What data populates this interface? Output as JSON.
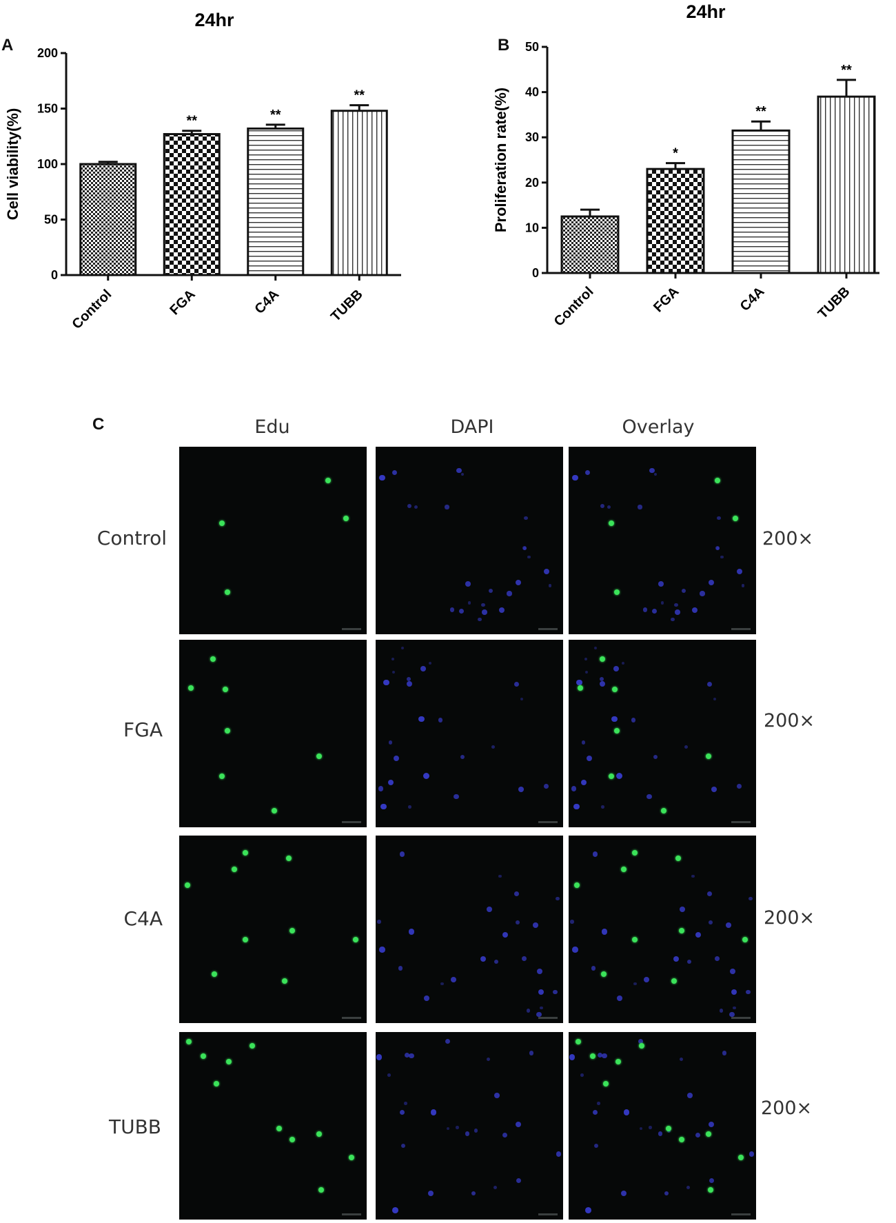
{
  "chart_data": [
    {
      "panel": "A",
      "type": "bar",
      "title": "24hr",
      "ylabel": "Cell viability(%)",
      "xlabel": "",
      "categories": [
        "Control",
        "FGA",
        "C4A",
        "TUBB"
      ],
      "values": [
        100,
        127,
        132,
        148
      ],
      "errors": [
        2,
        3,
        3.5,
        5
      ],
      "significance": [
        "",
        "**",
        "**",
        "**"
      ],
      "patterns": [
        "fine-check",
        "checker",
        "horizontal",
        "vertical"
      ],
      "ylim": [
        0,
        200
      ],
      "yticks": [
        0,
        50,
        100,
        150,
        200
      ],
      "grid": false
    },
    {
      "panel": "B",
      "type": "bar",
      "title": "24hr",
      "ylabel": "Proliferation rate(%)",
      "xlabel": "",
      "categories": [
        "Control",
        "FGA",
        "C4A",
        "TUBB"
      ],
      "values": [
        12.5,
        23,
        31.5,
        39
      ],
      "errors": [
        1.5,
        1.3,
        2,
        3.7
      ],
      "significance": [
        "",
        "*",
        "**",
        "**"
      ],
      "patterns": [
        "fine-check",
        "checker",
        "horizontal",
        "vertical"
      ],
      "ylim": [
        0,
        50
      ],
      "yticks": [
        0,
        10,
        20,
        30,
        40,
        50
      ],
      "grid": false
    }
  ],
  "panel_c": {
    "letter": "C",
    "columns": [
      "Edu",
      "DAPI",
      "Overlay"
    ],
    "rows": [
      {
        "label": "Control",
        "magnification": "200×"
      },
      {
        "label": "FGA",
        "magnification": "200×"
      },
      {
        "label": "C4A",
        "magnification": "200×"
      },
      {
        "label": "TUBB",
        "magnification": "200×"
      }
    ],
    "colors": {
      "edu": "#3be35a",
      "dapi": "#3a3fd8",
      "background": "#060808"
    }
  }
}
